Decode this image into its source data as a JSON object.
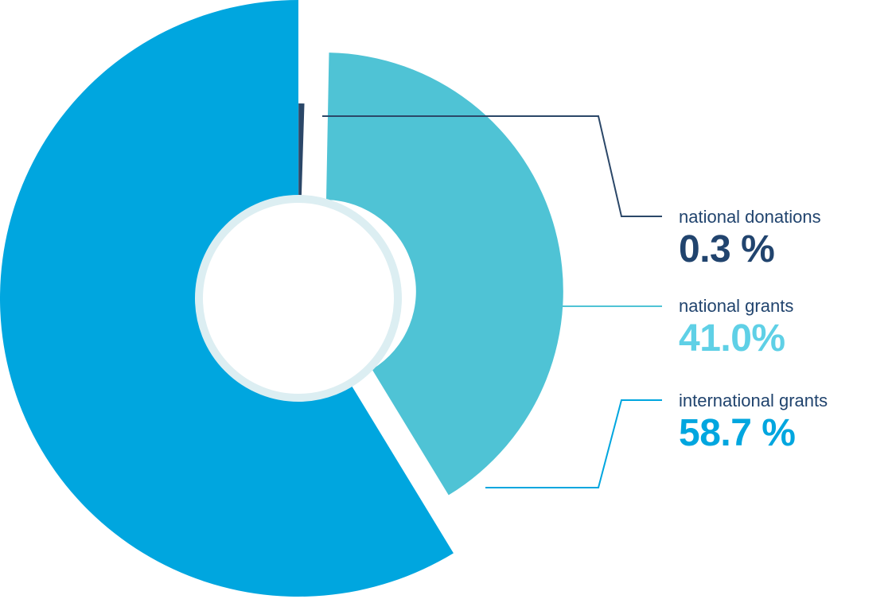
{
  "chart_data": {
    "type": "pie",
    "style": "exploded donut with leader-line labels on the right",
    "slices": [
      {
        "label": "national donations",
        "value": 0.3,
        "value_text": "0.3 %",
        "color": "#2b4768",
        "label_color": "#21446e",
        "value_color": "#21446e"
      },
      {
        "label": "national grants",
        "value": 41.0,
        "value_text": "41.0%",
        "color": "#4fc3d5",
        "label_color": "#21446e",
        "value_color": "#5fd0e6"
      },
      {
        "label": "international grants",
        "value": 58.7,
        "value_text": "58.7 %",
        "color": "#00a6df",
        "label_color": "#21446e",
        "value_color": "#00a6df"
      }
    ],
    "hole_ring_color": "#dceef2",
    "hole_color": "#ffffff"
  }
}
